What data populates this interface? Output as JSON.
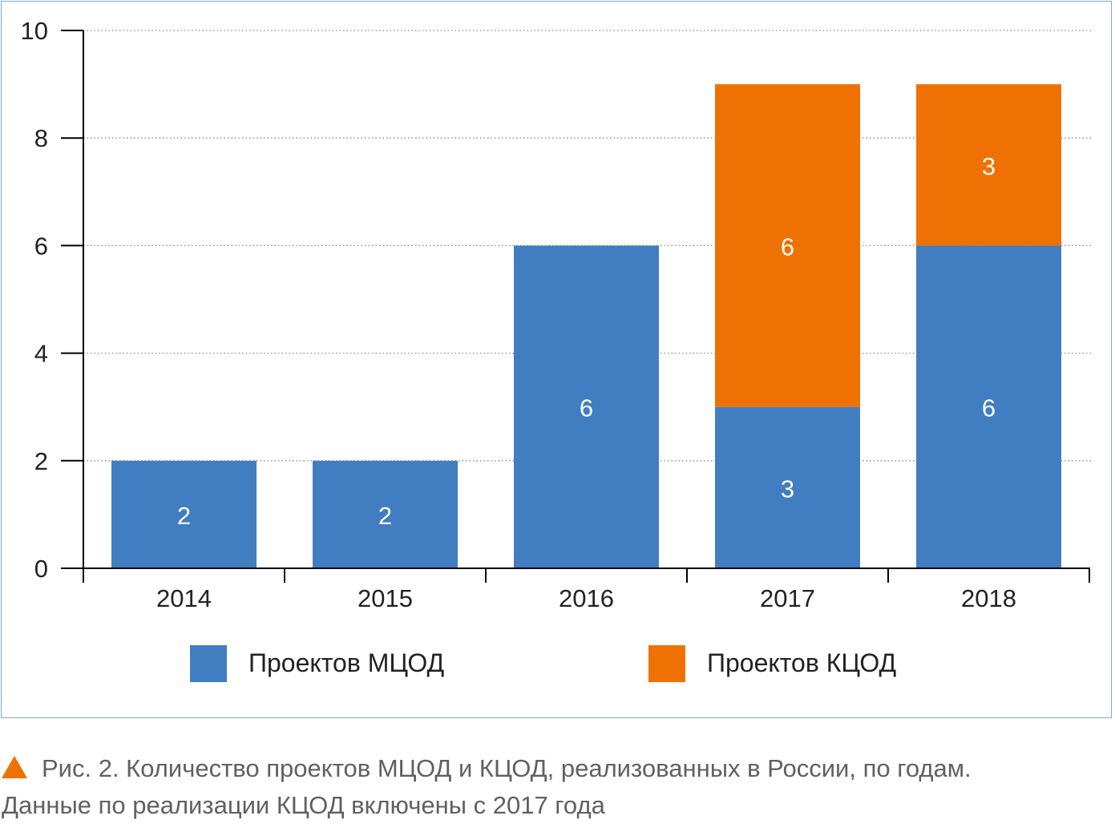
{
  "chart_data": {
    "type": "bar",
    "stacked": true,
    "categories": [
      "2014",
      "2015",
      "2016",
      "2017",
      "2018"
    ],
    "series": [
      {
        "name": "Проектов МЦОД",
        "color": "#417dc1",
        "values": [
          2,
          2,
          6,
          3,
          6
        ]
      },
      {
        "name": "Проектов КЦОД",
        "color": "#ef7103",
        "values": [
          0,
          0,
          0,
          6,
          3
        ]
      }
    ],
    "ylim": [
      0,
      10
    ],
    "yticks": [
      0,
      2,
      4,
      6,
      8,
      10
    ],
    "grid": true,
    "legend_position": "bottom",
    "data_labels": true
  },
  "caption": {
    "icon": "triangle-icon",
    "line1": "Рис. 2. Количество проектов МЦОД и КЦОД, реализованных в России, по годам.",
    "line2": "Данные по реализации КЦОД включены с 2017 года"
  }
}
